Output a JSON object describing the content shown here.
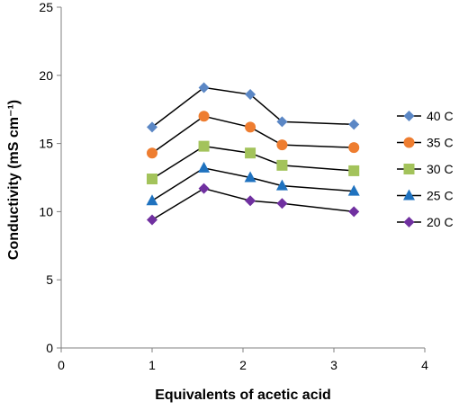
{
  "chart_data": {
    "type": "line",
    "xlabel": "Equivalents of acetic acid",
    "ylabel": "Conductivity (mS cm⁻¹)",
    "xlim": [
      0,
      4
    ],
    "ylim": [
      0,
      25
    ],
    "x_ticks": [
      0,
      1,
      2,
      3,
      4
    ],
    "y_ticks": [
      0,
      5,
      10,
      15,
      20,
      25
    ],
    "x_tick_labels": [
      "0",
      "1",
      "2",
      "3",
      "4"
    ],
    "y_tick_labels": [
      "0",
      "5",
      "10",
      "15",
      "20",
      "25"
    ],
    "grid": false,
    "legend_position": "right",
    "x": [
      1.0,
      1.57,
      2.08,
      2.43,
      3.22
    ],
    "series": [
      {
        "name": "40 C",
        "values": [
          16.2,
          19.1,
          18.6,
          16.6,
          16.4
        ],
        "color": "#5b87c5",
        "line_color": "#000000",
        "marker": "diamond"
      },
      {
        "name": "35 C",
        "values": [
          14.3,
          17.0,
          16.2,
          14.9,
          14.7
        ],
        "color": "#ee7d30",
        "line_color": "#000000",
        "marker": "circle"
      },
      {
        "name": "30 C",
        "values": [
          12.4,
          14.8,
          14.3,
          13.4,
          13.0
        ],
        "color": "#a3c35b",
        "line_color": "#000000",
        "marker": "square"
      },
      {
        "name": "25 C",
        "values": [
          10.8,
          13.2,
          12.5,
          11.9,
          11.5
        ],
        "color": "#1f72bf",
        "line_color": "#000000",
        "marker": "triangle"
      },
      {
        "name": "20 C",
        "values": [
          9.4,
          11.7,
          10.8,
          10.6,
          10.0
        ],
        "color": "#7030a0",
        "line_color": "#000000",
        "marker": "diamond"
      }
    ]
  }
}
